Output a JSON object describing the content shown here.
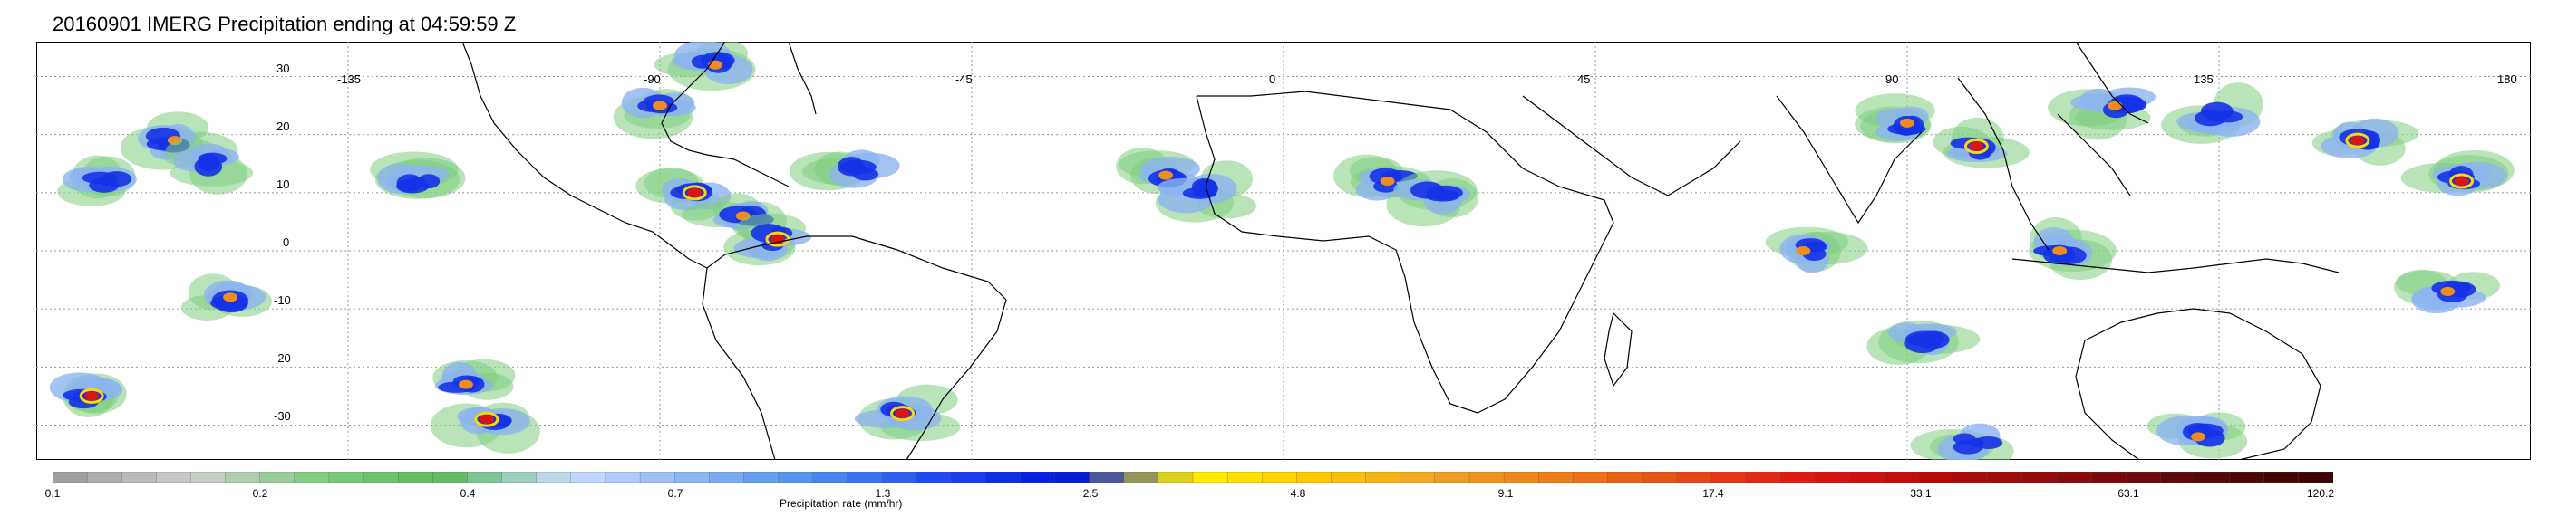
{
  "title": "20160901 IMERG Precipitation ending at 04:59:59 Z",
  "map": {
    "lon_labels": [
      "-135",
      "-90",
      "-45",
      "0",
      "45",
      "90",
      "135",
      "180"
    ],
    "lat_labels": [
      "30",
      "20",
      "10",
      "0",
      "-10",
      "-20",
      "-30"
    ],
    "lon_range": [
      -180,
      180
    ],
    "lat_range": [
      -36,
      36
    ],
    "grid": true
  },
  "colorbar": {
    "label": "Precipitation rate (mm/hr)",
    "tick_labels": [
      "0.1",
      "0.2",
      "0.4",
      "0.7",
      "1.3",
      "2.5",
      "4.8",
      "9.1",
      "17.4",
      "33.1",
      "63.1",
      "120.2"
    ],
    "colors": {
      "gray": "#b4b4b4",
      "green": "#7dcd7d",
      "light_blue": "#8cb4f0",
      "blue": "#1432e6",
      "yellow": "#ffd700",
      "orange": "#f08c1e",
      "red": "#dc1414",
      "dark_red": "#8c0a0a"
    }
  },
  "precip_clusters": [
    {
      "lon": -172,
      "lat": -25,
      "level": "red"
    },
    {
      "lon": -170,
      "lat": 12,
      "level": "blue"
    },
    {
      "lon": -160,
      "lat": 19,
      "level": "orange"
    },
    {
      "lon": -155,
      "lat": 15,
      "level": "blue"
    },
    {
      "lon": -152,
      "lat": -8,
      "level": "orange"
    },
    {
      "lon": -125,
      "lat": 12,
      "level": "blue"
    },
    {
      "lon": -118,
      "lat": -23,
      "level": "orange"
    },
    {
      "lon": -115,
      "lat": -29,
      "level": "red"
    },
    {
      "lon": -90,
      "lat": 25,
      "level": "orange"
    },
    {
      "lon": -82,
      "lat": 32,
      "level": "orange"
    },
    {
      "lon": -85,
      "lat": 10,
      "level": "red"
    },
    {
      "lon": -78,
      "lat": 6,
      "level": "orange"
    },
    {
      "lon": -73,
      "lat": 2,
      "level": "red"
    },
    {
      "lon": -62,
      "lat": 14,
      "level": "blue"
    },
    {
      "lon": -55,
      "lat": -28,
      "level": "red"
    },
    {
      "lon": -17,
      "lat": 13,
      "level": "orange"
    },
    {
      "lon": -12,
      "lat": 10,
      "level": "blue"
    },
    {
      "lon": 15,
      "lat": 12,
      "level": "orange"
    },
    {
      "lon": 22,
      "lat": 10,
      "level": "blue"
    },
    {
      "lon": 75,
      "lat": 0,
      "level": "orange"
    },
    {
      "lon": 90,
      "lat": 22,
      "level": "orange"
    },
    {
      "lon": 100,
      "lat": 18,
      "level": "red"
    },
    {
      "lon": 112,
      "lat": 0,
      "level": "orange"
    },
    {
      "lon": 120,
      "lat": 25,
      "level": "orange"
    },
    {
      "lon": 135,
      "lat": 23,
      "level": "blue"
    },
    {
      "lon": 155,
      "lat": 19,
      "level": "red"
    },
    {
      "lon": 170,
      "lat": 12,
      "level": "red"
    },
    {
      "lon": 168,
      "lat": -7,
      "level": "orange"
    },
    {
      "lon": 132,
      "lat": -32,
      "level": "orange"
    },
    {
      "lon": 92,
      "lat": -15,
      "level": "blue"
    },
    {
      "lon": 100,
      "lat": -33,
      "level": "blue"
    }
  ]
}
